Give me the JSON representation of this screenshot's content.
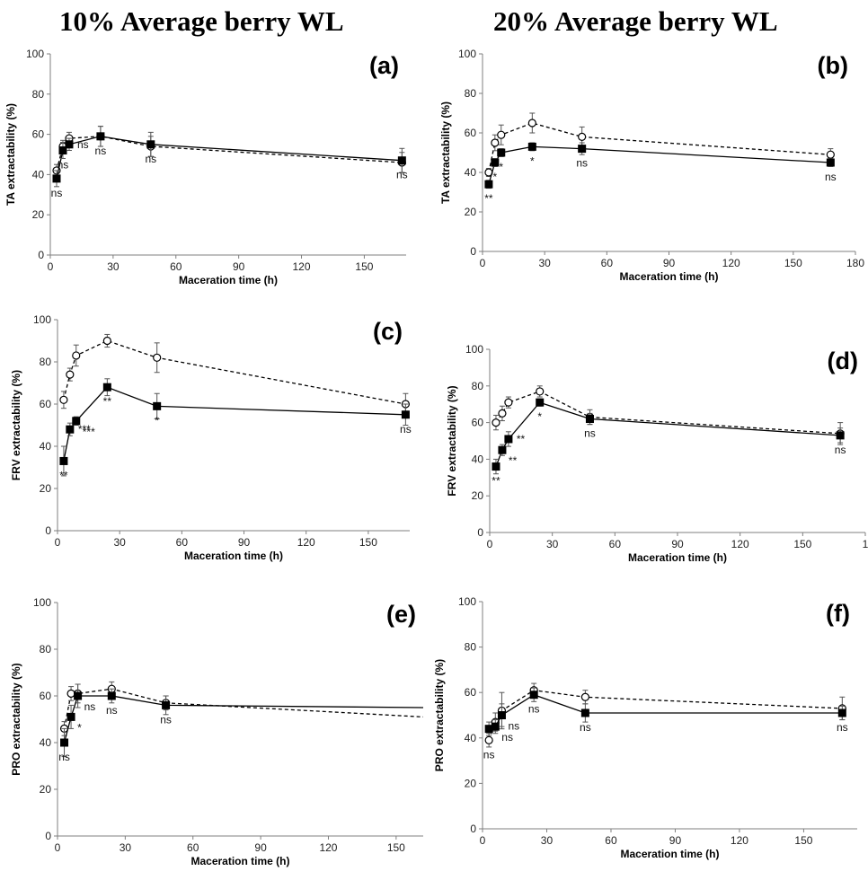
{
  "titles": {
    "left": "10% Average berry WL",
    "right": "20% Average berry WL"
  },
  "chart_data": [
    {
      "type": "line",
      "panel": "(a)",
      "xlabel": "Maceration time (h)",
      "ylabel": "TA extractability (%)",
      "xlim": [
        0,
        170
      ],
      "ylim": [
        0,
        100
      ],
      "xticks": [
        "0",
        "30",
        "60",
        "90",
        "120",
        "150"
      ],
      "yticks": [
        "0",
        "20",
        "40",
        "60",
        "80",
        "100"
      ],
      "series": [
        {
          "marker": "circle-open",
          "line": "dashed",
          "x": [
            3,
            6,
            9,
            24,
            48,
            168
          ],
          "y": [
            42,
            54,
            58,
            59,
            54,
            46
          ],
          "err": [
            3,
            3,
            3,
            5,
            5,
            5
          ]
        },
        {
          "marker": "square-filled",
          "line": "solid",
          "x": [
            3,
            6,
            9,
            24,
            48,
            168
          ],
          "y": [
            38,
            52,
            55,
            59,
            55,
            47
          ],
          "err": [
            4,
            4,
            3,
            5,
            6,
            6
          ]
        }
      ],
      "annotations": [
        {
          "x": 3,
          "y": 38,
          "text": "ns",
          "pos": "below"
        },
        {
          "x": 6,
          "y": 52,
          "text": "ns",
          "pos": "below"
        },
        {
          "x": 9,
          "y": 55,
          "text": "ns",
          "pos": "right"
        },
        {
          "x": 24,
          "y": 59,
          "text": "ns",
          "pos": "below"
        },
        {
          "x": 48,
          "y": 55,
          "text": "ns",
          "pos": "below"
        },
        {
          "x": 168,
          "y": 47,
          "text": "ns",
          "pos": "below"
        }
      ]
    },
    {
      "type": "line",
      "panel": "(b)",
      "xlabel": "Maceration time (h)",
      "ylabel": "TA extractability (%)",
      "xlim": [
        0,
        180
      ],
      "ylim": [
        0,
        100
      ],
      "xticks": [
        "0",
        "30",
        "60",
        "90",
        "120",
        "150",
        "180"
      ],
      "yticks": [
        "0",
        "20",
        "40",
        "60",
        "80",
        "100"
      ],
      "series": [
        {
          "marker": "circle-open",
          "line": "dashed",
          "x": [
            3,
            6,
            9,
            24,
            48,
            168
          ],
          "y": [
            40,
            55,
            59,
            65,
            58,
            49
          ],
          "err": [
            2,
            4,
            5,
            5,
            5,
            3
          ]
        },
        {
          "marker": "square-filled",
          "line": "solid",
          "x": [
            3,
            6,
            9,
            24,
            48,
            168
          ],
          "y": [
            34,
            45,
            50,
            53,
            52,
            45
          ],
          "err": [
            2,
            2,
            2,
            2,
            3,
            2
          ]
        }
      ],
      "annotations": [
        {
          "x": 3,
          "y": 34,
          "text": "**",
          "pos": "below"
        },
        {
          "x": 6,
          "y": 45,
          "text": "*",
          "pos": "below"
        },
        {
          "x": 9,
          "y": 50,
          "text": "*",
          "pos": "below"
        },
        {
          "x": 24,
          "y": 53,
          "text": "*",
          "pos": "below"
        },
        {
          "x": 48,
          "y": 52,
          "text": "ns",
          "pos": "below"
        },
        {
          "x": 168,
          "y": 45,
          "text": "ns",
          "pos": "below"
        }
      ]
    },
    {
      "type": "line",
      "panel": "(c)",
      "xlabel": "Maceration time (h)",
      "ylabel": "FRV extractability (%)",
      "xlim": [
        0,
        170
      ],
      "ylim": [
        0,
        100
      ],
      "xticks": [
        "0",
        "30",
        "60",
        "90",
        "120",
        "150"
      ],
      "yticks": [
        "0",
        "20",
        "40",
        "60",
        "80",
        "100"
      ],
      "series": [
        {
          "marker": "circle-open",
          "line": "dashed",
          "x": [
            3,
            6,
            9,
            24,
            48,
            168
          ],
          "y": [
            62,
            74,
            83,
            90,
            82,
            60
          ],
          "err": [
            4,
            3,
            5,
            3,
            7,
            5
          ]
        },
        {
          "marker": "square-filled",
          "line": "solid",
          "x": [
            3,
            6,
            9,
            24,
            48,
            168
          ],
          "y": [
            33,
            48,
            52,
            68,
            59,
            55
          ],
          "err": [
            7,
            3,
            2,
            4,
            6,
            5
          ]
        }
      ],
      "annotations": [
        {
          "x": 3,
          "y": 33,
          "text": "**",
          "pos": "below"
        },
        {
          "x": 6,
          "y": 48,
          "text": "***",
          "pos": "right"
        },
        {
          "x": 9,
          "y": 52,
          "text": "***",
          "pos": "belowright"
        },
        {
          "x": 24,
          "y": 68,
          "text": "**",
          "pos": "below"
        },
        {
          "x": 48,
          "y": 59,
          "text": "*",
          "pos": "below"
        },
        {
          "x": 168,
          "y": 55,
          "text": "ns",
          "pos": "below"
        }
      ]
    },
    {
      "type": "line",
      "panel": "(d)",
      "xlabel": "Maceration time (h)",
      "ylabel": "FRV extractability (%)",
      "xlim": [
        0,
        180
      ],
      "ylim": [
        0,
        100
      ],
      "xticks": [
        "0",
        "30",
        "60",
        "90",
        "120",
        "150",
        "1"
      ],
      "yticks": [
        "0",
        "20",
        "40",
        "60",
        "80",
        "100"
      ],
      "series": [
        {
          "marker": "circle-open",
          "line": "dashed",
          "x": [
            3,
            6,
            9,
            24,
            48,
            168
          ],
          "y": [
            60,
            65,
            71,
            77,
            63,
            54
          ],
          "err": [
            4,
            4,
            3,
            3,
            4,
            6
          ]
        },
        {
          "marker": "square-filled",
          "line": "solid",
          "x": [
            3,
            6,
            9,
            24,
            48,
            168
          ],
          "y": [
            36,
            45,
            51,
            71,
            62,
            53
          ],
          "err": [
            4,
            3,
            4,
            2,
            3,
            4
          ]
        }
      ],
      "annotations": [
        {
          "x": 3,
          "y": 36,
          "text": "**",
          "pos": "below"
        },
        {
          "x": 6,
          "y": 45,
          "text": "**",
          "pos": "belowright"
        },
        {
          "x": 9,
          "y": 51,
          "text": "**",
          "pos": "right"
        },
        {
          "x": 24,
          "y": 71,
          "text": "*",
          "pos": "below"
        },
        {
          "x": 48,
          "y": 62,
          "text": "ns",
          "pos": "below"
        },
        {
          "x": 168,
          "y": 53,
          "text": "ns",
          "pos": "below"
        }
      ]
    },
    {
      "type": "line",
      "panel": "(e)",
      "xlabel": "Maceration time (h)",
      "ylabel": "PRO extractability (%)",
      "xlim": [
        0,
        162
      ],
      "ylim": [
        0,
        100
      ],
      "xticks": [
        "0",
        "30",
        "60",
        "90",
        "120",
        "150"
      ],
      "yticks": [
        "0",
        "20",
        "40",
        "60",
        "80",
        "100"
      ],
      "series": [
        {
          "marker": "circle-open",
          "line": "dashed",
          "x": [
            3,
            6,
            9,
            24,
            48,
            162
          ],
          "y": [
            46,
            61,
            61,
            63,
            57,
            51
          ],
          "err": [
            3,
            3,
            4,
            3,
            3,
            0
          ]
        },
        {
          "marker": "square-filled",
          "line": "solid",
          "x": [
            3,
            6,
            9,
            24,
            48,
            162
          ],
          "y": [
            40,
            51,
            60,
            60,
            56,
            55
          ],
          "err": [
            6,
            5,
            5,
            3,
            4,
            0
          ]
        }
      ],
      "annotations": [
        {
          "x": 3,
          "y": 40,
          "text": "ns",
          "pos": "below"
        },
        {
          "x": 6,
          "y": 51,
          "text": "*",
          "pos": "belowright"
        },
        {
          "x": 9,
          "y": 60,
          "text": "ns",
          "pos": "belowright"
        },
        {
          "x": 24,
          "y": 60,
          "text": "ns",
          "pos": "below"
        },
        {
          "x": 48,
          "y": 56,
          "text": "ns",
          "pos": "below"
        }
      ]
    },
    {
      "type": "line",
      "panel": "(f)",
      "xlabel": "Maceration time (h)",
      "ylabel": "PRO extractability (%)",
      "xlim": [
        0,
        175
      ],
      "ylim": [
        0,
        100
      ],
      "xticks": [
        "0",
        "30",
        "60",
        "90",
        "120",
        "150"
      ],
      "yticks": [
        "0",
        "20",
        "40",
        "60",
        "80",
        "100"
      ],
      "series": [
        {
          "marker": "circle-open",
          "line": "dashed",
          "x": [
            3,
            6,
            9,
            24,
            48,
            168
          ],
          "y": [
            39,
            47,
            52,
            61,
            58,
            53
          ],
          "err": [
            3,
            4,
            8,
            3,
            3,
            5
          ]
        },
        {
          "marker": "square-filled",
          "line": "solid",
          "x": [
            3,
            6,
            9,
            24,
            48,
            168
          ],
          "y": [
            44,
            45,
            50,
            59,
            51,
            51
          ],
          "err": [
            3,
            3,
            5,
            3,
            4,
            3
          ]
        }
      ],
      "annotations": [
        {
          "x": 3,
          "y": 39,
          "text": "ns",
          "pos": "below"
        },
        {
          "x": 6,
          "y": 45,
          "text": "ns",
          "pos": "belowright"
        },
        {
          "x": 9,
          "y": 50,
          "text": "ns",
          "pos": "belowright"
        },
        {
          "x": 24,
          "y": 59,
          "text": "ns",
          "pos": "below"
        },
        {
          "x": 48,
          "y": 51,
          "text": "ns",
          "pos": "below"
        },
        {
          "x": 168,
          "y": 51,
          "text": "ns",
          "pos": "below"
        }
      ]
    }
  ]
}
